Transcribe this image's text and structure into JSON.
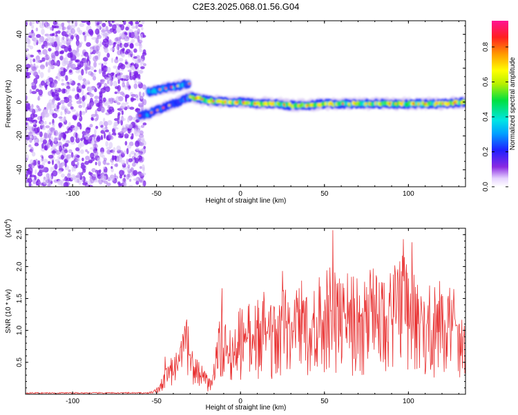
{
  "chart_data": [
    {
      "type": "heatmap",
      "title": "C2E3.2025.068.01.56.G04",
      "xlabel": "Height of straight line (km)",
      "ylabel": "Frequency (Hz)",
      "xlim": [
        -128,
        134
      ],
      "ylim": [
        -50,
        48
      ],
      "xticks": [
        -100,
        -50,
        0,
        50,
        100
      ],
      "yticks": [
        -40,
        -20,
        0,
        20,
        40
      ],
      "colorbar": {
        "label": "Normalized spectral amplitude",
        "range": [
          0,
          0.95
        ],
        "ticks": [
          0.0,
          0.2,
          0.4,
          0.6,
          0.8
        ]
      },
      "noise_region": {
        "x": [
          -128,
          -57
        ],
        "y": [
          -50,
          48
        ],
        "level": 0.1
      },
      "ridges": [
        {
          "x": [
            -60,
            -55,
            -50,
            -45,
            -40,
            -35,
            -30
          ],
          "y": [
            -8,
            -7,
            -5,
            -3,
            -1,
            1,
            3
          ],
          "amplitude": 0.35
        },
        {
          "x": [
            -55,
            -50,
            -45,
            -40,
            -35,
            -30
          ],
          "y": [
            6,
            7,
            8,
            9,
            10,
            11
          ],
          "amplitude": 0.4
        },
        {
          "x": [
            -30,
            -20,
            -10,
            0,
            10,
            20,
            30,
            40,
            50,
            60,
            70,
            80,
            90,
            100,
            110,
            120,
            134
          ],
          "y": [
            3,
            1,
            0,
            0,
            -1,
            -1,
            -2,
            -2,
            -1,
            -1,
            -1,
            -1,
            -1,
            -1,
            -1,
            -1,
            0
          ],
          "amplitude": 0.75
        }
      ]
    },
    {
      "type": "line",
      "xlabel": "Height of straight line (km)",
      "ylabel": "SNR (10 * v/v)",
      "y_multiplier": "(x10^4)",
      "y_multiplier_base": "(x10",
      "y_multiplier_exp": "4",
      "y_multiplier_close": ")",
      "xlim": [
        -128,
        134
      ],
      "ylim": [
        0,
        2.6
      ],
      "xticks": [
        -100,
        -50,
        0,
        50,
        100
      ],
      "yticks": [
        0.5,
        1.0,
        1.5,
        2.0,
        2.5
      ],
      "color": "#e83030",
      "envelope": {
        "x": [
          -128,
          -60,
          -52,
          -48,
          -44,
          -40,
          -36,
          -32,
          -28,
          -24,
          -20,
          -17,
          -15,
          -12,
          -8,
          -4,
          0,
          5,
          10,
          15,
          20,
          30,
          40,
          50,
          55,
          60,
          70,
          80,
          90,
          97,
          100,
          110,
          120,
          130,
          134
        ],
        "y": [
          0.01,
          0.01,
          0.05,
          0.15,
          0.7,
          0.5,
          0.85,
          1.1,
          0.75,
          0.5,
          0.3,
          0.2,
          0.7,
          1.2,
          1.05,
          1.2,
          1.35,
          1.4,
          1.5,
          1.55,
          1.6,
          1.7,
          1.75,
          1.8,
          2.0,
          1.9,
          1.85,
          1.9,
          1.95,
          2.1,
          1.85,
          1.7,
          1.7,
          1.6,
          1.35
        ]
      },
      "peaks": [
        {
          "x": -32,
          "y": 1.17
        },
        {
          "x": -11,
          "y": 1.66
        },
        {
          "x": 25,
          "y": 1.93
        },
        {
          "x": 55,
          "y": 2.57
        },
        {
          "x": 97,
          "y": 2.43
        },
        {
          "x": 102,
          "y": 2.38
        }
      ]
    }
  ]
}
